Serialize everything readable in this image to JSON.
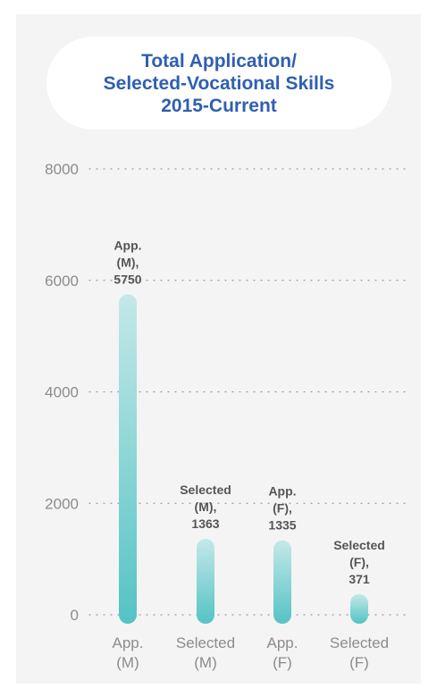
{
  "colors": {
    "background": "#f4f4f4",
    "title": "#2f5fb2",
    "bar_light": "#c4e8e8",
    "bar_dark": "#54c3c5",
    "grid_dots": "#9a9a9a",
    "tick_label": "#8c8c8c",
    "data_label": "#555555"
  },
  "chart_data": {
    "type": "bar",
    "title": "Total Application/ Selected-Vocational Skills 2015-Current",
    "categories": [
      "App. (M)",
      "Selected (M)",
      "App. (F)",
      "Selected (F)"
    ],
    "category_lines": [
      [
        "App.",
        "(M)"
      ],
      [
        "Selected",
        "(M)"
      ],
      [
        "App.",
        "(F)"
      ],
      [
        "Selected",
        "(F)"
      ]
    ],
    "values": [
      5750,
      1363,
      1335,
      371
    ],
    "data_label_lines": [
      [
        "App.",
        "(M),",
        "5750"
      ],
      [
        "Selected",
        "(M),",
        "1363"
      ],
      [
        "App.",
        "(F),",
        "1335"
      ],
      [
        "Selected",
        "(F),",
        "371"
      ]
    ],
    "ylim": [
      0,
      8000
    ],
    "yticks": [
      0,
      2000,
      4000,
      6000,
      8000
    ],
    "grid": true,
    "legend": "none"
  }
}
